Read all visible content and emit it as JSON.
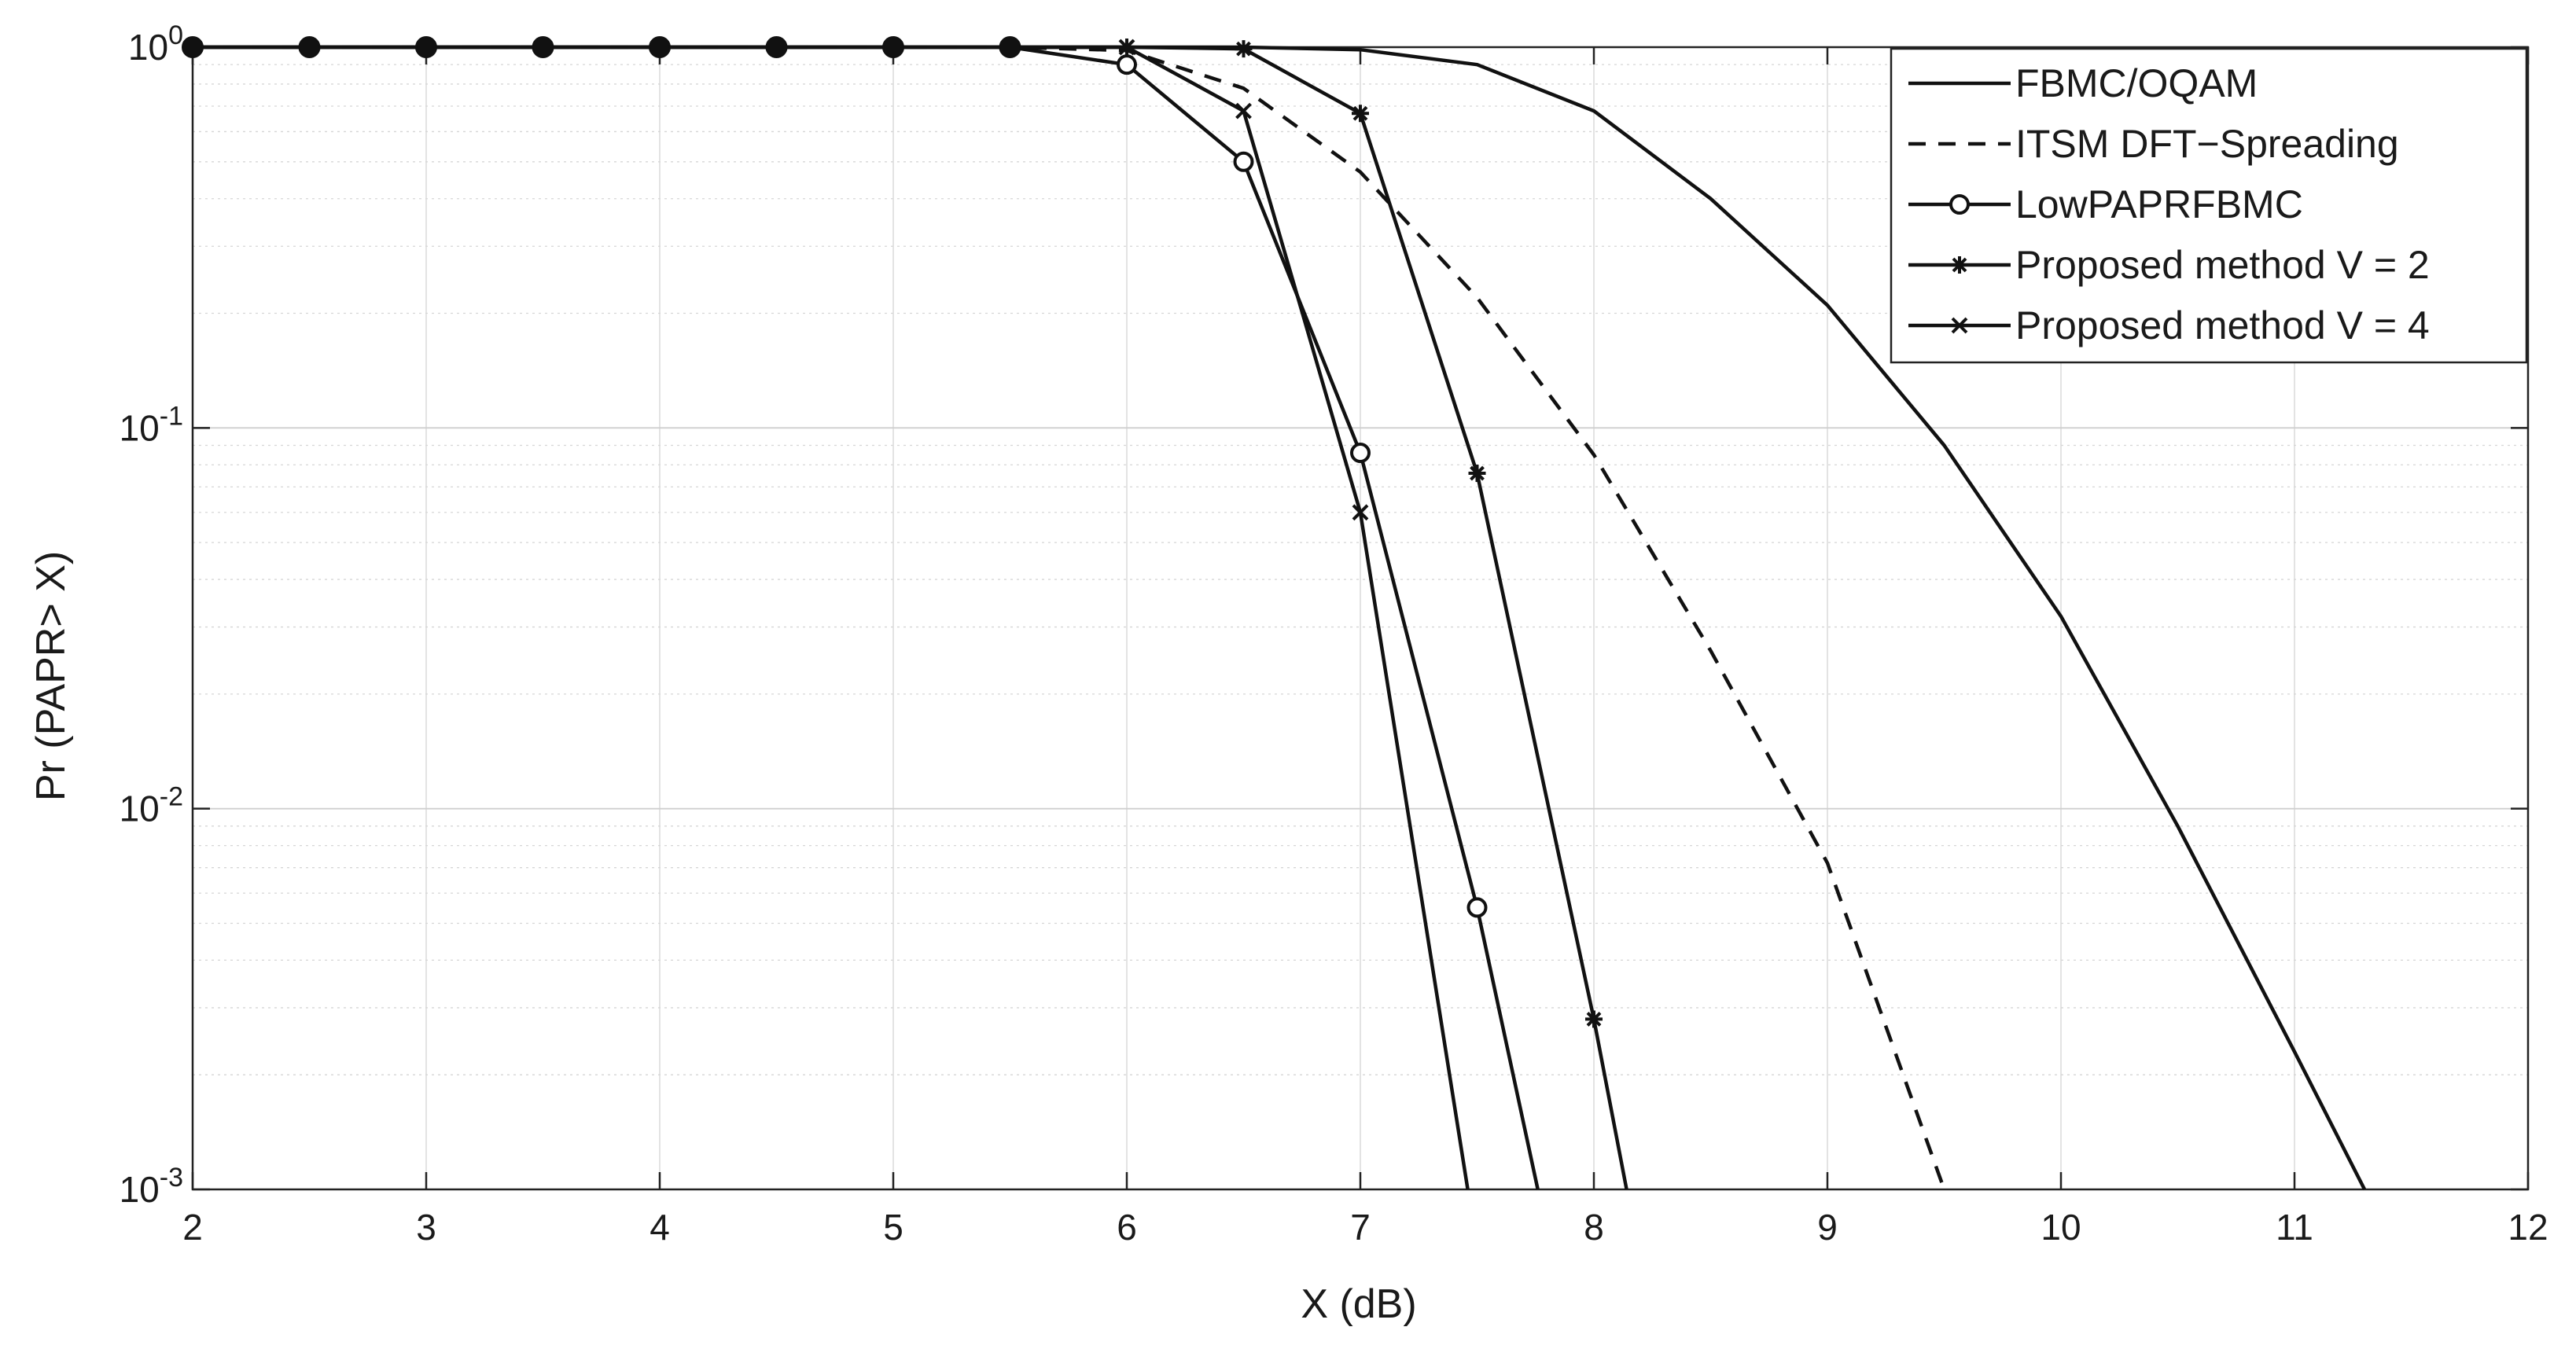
{
  "chart_data": {
    "type": "line",
    "title": "",
    "xlabel": "X (dB)",
    "ylabel": "Pr (PAPR> X)",
    "xlim": [
      2,
      12
    ],
    "ylim": [
      0.001,
      1
    ],
    "yscale": "log",
    "grid": true,
    "minor_grid": true,
    "legend_position": "top-right",
    "x_ticks": [
      2,
      3,
      4,
      5,
      6,
      7,
      8,
      9,
      10,
      11,
      12
    ],
    "x_tick_labels": [
      "2",
      "3",
      "4",
      "5",
      "6",
      "7",
      "8",
      "9",
      "10",
      "11",
      "12"
    ],
    "y_ticks": [
      {
        "value": 1,
        "base": "10",
        "exp": "0"
      },
      {
        "value": 0.1,
        "base": "10",
        "exp": "-1"
      },
      {
        "value": 0.01,
        "base": "10",
        "exp": "-2"
      },
      {
        "value": 0.001,
        "base": "10",
        "exp": "-3"
      }
    ],
    "series": [
      {
        "name": "FBMC/OQAM",
        "line": "solid",
        "marker": "none",
        "color": "#111111",
        "x": [
          2,
          2.5,
          3,
          3.5,
          4,
          4.5,
          5,
          5.5,
          6,
          6.5,
          7,
          7.5,
          8,
          8.5,
          9,
          9.5,
          10,
          10.5,
          11,
          11.3
        ],
        "y": [
          1,
          1,
          1,
          1,
          1,
          1,
          1,
          1,
          1,
          1,
          0.985,
          0.9,
          0.68,
          0.4,
          0.21,
          0.09,
          0.032,
          0.009,
          0.0023,
          0.001
        ]
      },
      {
        "name": "ITSM DFT−Spreading",
        "line": "dashed",
        "marker": "none",
        "color": "#111111",
        "x": [
          2,
          2.5,
          3,
          3.5,
          4,
          4.5,
          5,
          5.5,
          6,
          6.5,
          7,
          7.5,
          8,
          8.5,
          9,
          9.5
        ],
        "y": [
          1,
          1,
          1,
          1,
          1,
          1,
          1,
          1,
          0.98,
          0.78,
          0.47,
          0.22,
          0.085,
          0.026,
          0.0072,
          0.001
        ]
      },
      {
        "name": "LowPAPRFBMC",
        "line": "solid",
        "marker": "circle",
        "color": "#111111",
        "x": [
          2,
          2.5,
          3,
          3.5,
          4,
          4.5,
          5,
          5.5,
          6,
          6.5,
          7,
          7.5,
          7.76
        ],
        "y": [
          1,
          1,
          1,
          1,
          1,
          1,
          1,
          1,
          0.9,
          0.5,
          0.086,
          0.0055,
          0.001
        ]
      },
      {
        "name": "Proposed method V = 2",
        "line": "solid",
        "marker": "asterisk",
        "color": "#111111",
        "x": [
          2,
          2.5,
          3,
          3.5,
          4,
          4.5,
          5,
          5.5,
          6,
          6.5,
          7,
          7.5,
          8,
          8.14
        ],
        "y": [
          1,
          1,
          1,
          1,
          1,
          1,
          1,
          1,
          1,
          0.99,
          0.67,
          0.076,
          0.0028,
          0.001
        ]
      },
      {
        "name": " Proposed method V = 4",
        "line": "solid",
        "marker": "x",
        "color": "#111111",
        "x": [
          2,
          2.5,
          3,
          3.5,
          4,
          4.5,
          5,
          5.5,
          6,
          6.5,
          7,
          7.46
        ],
        "y": [
          1,
          1,
          1,
          1,
          1,
          1,
          1,
          1,
          1,
          0.68,
          0.06,
          0.001
        ]
      }
    ],
    "overlay_markers": {
      "marker": "dot",
      "x": [
        2,
        2.5,
        3,
        3.5,
        4,
        4.5,
        5,
        5.5
      ],
      "y": [
        1,
        1,
        1,
        1,
        1,
        1,
        1,
        1
      ]
    }
  }
}
